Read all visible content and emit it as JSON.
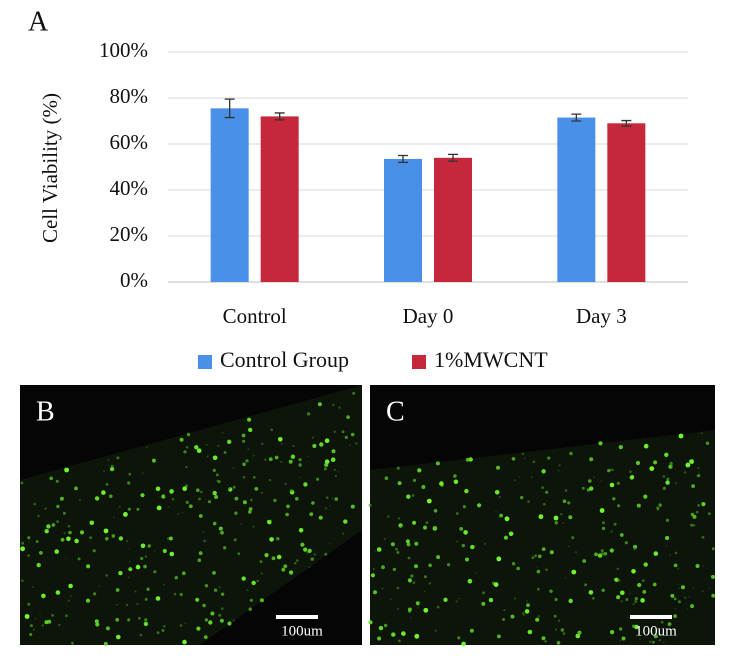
{
  "chart_data": {
    "type": "bar",
    "panel_label": "A",
    "ylabel": "Cell Viability (%)",
    "categories": [
      "Control",
      "Day 0",
      "Day 3"
    ],
    "series": [
      {
        "name": "Control Group",
        "color": "#4a90e8",
        "values": [
          75.5,
          53.5,
          71.5
        ],
        "errors": [
          4,
          1.5,
          1.5
        ]
      },
      {
        "name": "1%MWCNT",
        "color": "#c4283a",
        "values": [
          72,
          54,
          69
        ],
        "errors": [
          1.5,
          1.5,
          1.2
        ]
      }
    ],
    "ylim": [
      0,
      100
    ],
    "yticks": [
      {
        "value": 0,
        "label": "0%"
      },
      {
        "value": 20,
        "label": "20%"
      },
      {
        "value": 40,
        "label": "40%"
      },
      {
        "value": 60,
        "label": "60%"
      },
      {
        "value": 80,
        "label": "80%"
      },
      {
        "value": 100,
        "label": "100%"
      }
    ],
    "grid": true,
    "legend": "bottom"
  },
  "images": [
    {
      "label": "B",
      "scale_bar": "100um"
    },
    {
      "label": "C",
      "scale_bar": "100um"
    }
  ]
}
